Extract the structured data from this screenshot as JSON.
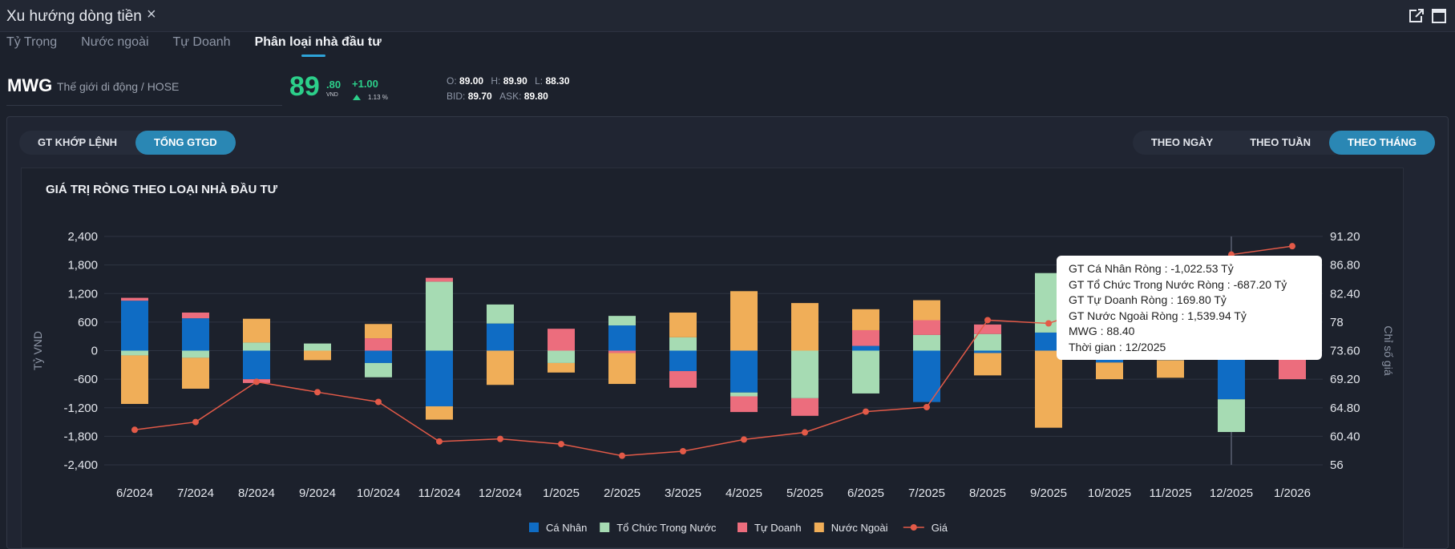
{
  "window": {
    "title": "Xu hướng dòng tiền"
  },
  "tabs": [
    {
      "label": "Tỷ Trọng"
    },
    {
      "label": "Nước ngoài"
    },
    {
      "label": "Tự Doanh"
    },
    {
      "label": "Phân loại nhà đầu tư"
    }
  ],
  "stock": {
    "ticker": "MWG",
    "company": "Thế giới di động / HOSE",
    "price_int": "89",
    "price_dec": ".80",
    "unit": "VND",
    "change": "+1.00",
    "change_pct": "1.13 %",
    "open_label": "O:",
    "open": "89.00",
    "high_label": "H:",
    "high": "89.90",
    "low_label": "L:",
    "low": "88.30",
    "bid_label": "BID:",
    "bid": "89.70",
    "ask_label": "ASK:",
    "ask": "89.80",
    "up_color": "#2ccf8a"
  },
  "value_toggle": [
    {
      "label": "GT KHỚP LỆNH",
      "active": false
    },
    {
      "label": "TỔNG GTGD",
      "active": true
    }
  ],
  "period_toggle": [
    {
      "label": "THEO NGÀY",
      "active": false
    },
    {
      "label": "THEO TUẦN",
      "active": false
    },
    {
      "label": "THEO THÁNG",
      "active": true
    }
  ],
  "chart_data": {
    "type": "bar",
    "stacked": true,
    "title": "GIÁ TRỊ RÒNG THEO LOẠI NHÀ ĐẦU TƯ",
    "ylabel": "Tỷ VND",
    "y2label": "Chỉ số giá",
    "ylim": [
      -2400,
      2400
    ],
    "yticks": [
      "2,400",
      "1,800",
      "1,200",
      "600",
      "0",
      "-600",
      "-1,200",
      "-1,800",
      "-2,400"
    ],
    "y2lim": [
      56,
      91.2
    ],
    "y2ticks": [
      "91.20",
      "86.80",
      "82.40",
      "78",
      "73.60",
      "69.20",
      "64.80",
      "60.40",
      "56"
    ],
    "grid": true,
    "legend_position": "bottom",
    "categories": [
      "6/2024",
      "7/2024",
      "8/2024",
      "9/2024",
      "10/2024",
      "11/2024",
      "12/2024",
      "1/2025",
      "2/2025",
      "3/2025",
      "4/2025",
      "5/2025",
      "6/2025",
      "7/2025",
      "8/2025",
      "9/2025",
      "10/2025",
      "11/2025",
      "12/2025",
      "1/2026"
    ],
    "series": [
      {
        "name": "Cá Nhân",
        "color": "#0f6cc4",
        "values": [
          1050,
          680,
          -600,
          0,
          -260,
          -1170,
          570,
          0,
          530,
          -430,
          -880,
          0,
          100,
          -1080,
          -50,
          380,
          -250,
          -200,
          -1022.53,
          0
        ]
      },
      {
        "name": "Tổ Chức Trong Nước",
        "color": "#a6dbb3",
        "values": [
          -100,
          -150,
          170,
          150,
          -300,
          1450,
          400,
          -260,
          200,
          280,
          -80,
          -1000,
          -900,
          330,
          350,
          1250,
          0,
          0,
          -687.2,
          0
        ]
      },
      {
        "name": "Tự Doanh",
        "color": "#ec6d7d",
        "values": [
          60,
          120,
          -80,
          0,
          260,
          80,
          0,
          460,
          -50,
          -350,
          -330,
          -370,
          330,
          310,
          200,
          0,
          150,
          0,
          169.8,
          -600
        ]
      },
      {
        "name": "Nước Ngoài",
        "color": "#f0ae58",
        "values": [
          -1020,
          -650,
          500,
          -200,
          300,
          -280,
          -720,
          -200,
          -650,
          520,
          1250,
          1000,
          440,
          420,
          -470,
          -1620,
          -350,
          -370,
          1539.94,
          0
        ]
      }
    ],
    "line": {
      "name": "Giá",
      "color": "#e35a48",
      "values": [
        61.4,
        62.6,
        68.8,
        67.2,
        65.7,
        59.6,
        60.0,
        59.2,
        57.4,
        58.1,
        59.9,
        61.0,
        64.2,
        64.9,
        78.3,
        77.8,
        81.0,
        84.0,
        88.4,
        89.7
      ]
    },
    "hover_index": 18,
    "tooltip": [
      "GT Cá Nhân Ròng  : -1,022.53 Tỷ",
      "GT Tổ Chức Trong Nước Ròng : -687.20 Tỷ",
      "GT Tự Doanh Ròng : 169.80 Tỷ",
      "GT Nước Ngoài Ròng : 1,539.94 Tỷ",
      "MWG : 88.40",
      "Thời gian : 12/2025"
    ]
  }
}
